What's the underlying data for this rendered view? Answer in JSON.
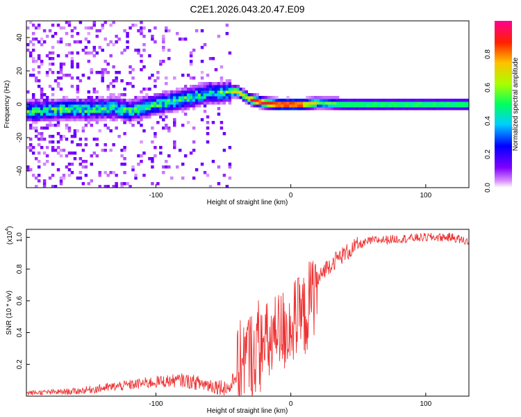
{
  "title": "C2E1.2026.043.20.47.E09",
  "chart_data": [
    {
      "type": "heatmap",
      "name": "spectrogram",
      "xlabel": "Height of straight line (km)",
      "ylabel": "Frequency (Hz)",
      "xlim": [
        -196,
        132
      ],
      "ylim": [
        -50,
        50
      ],
      "xticks": [
        -100,
        0,
        100
      ],
      "yticks": [
        -40,
        -20,
        0,
        20,
        40
      ],
      "colorbar": {
        "label": "Normalized spectral amplitude",
        "range": [
          0,
          1
        ],
        "ticks": [
          0.0,
          0.2,
          0.4,
          0.6,
          0.8
        ],
        "colors": [
          "#ffffff",
          "#a000ff",
          "#0000ff",
          "#00dfff",
          "#00ff40",
          "#c0ff00",
          "#ffa000",
          "#ff0000",
          "#ff00a0"
        ]
      },
      "ridge": {
        "x": [
          -190,
          -170,
          -150,
          -130,
          -120,
          -100,
          -80,
          -60,
          -50,
          -40,
          -30,
          -20,
          -10,
          0,
          10,
          20,
          40,
          60,
          80,
          100,
          132
        ],
        "freq": [
          -4,
          -3,
          -3,
          -2,
          -4,
          0,
          3,
          7,
          7,
          8,
          3,
          1,
          0,
          0,
          0,
          1,
          0,
          0,
          0,
          0,
          0
        ]
      }
    },
    {
      "type": "line",
      "name": "snr",
      "xlabel": "Height of straight line (km)",
      "ylabel": "SNR (10 * v/v)",
      "multiplier_label": "(x10",
      "multiplier_exp": "4",
      "xlim": [
        -196,
        132
      ],
      "ylim": [
        0,
        1.05
      ],
      "xticks": [
        -100,
        0,
        100
      ],
      "yticks": [
        0.2,
        0.4,
        0.6,
        0.8,
        1.0
      ],
      "color": "#ee3333",
      "trend": {
        "x": [
          -196,
          -160,
          -140,
          -120,
          -100,
          -80,
          -60,
          -45,
          -35,
          -20,
          -10,
          0,
          10,
          20,
          25,
          35,
          50,
          60,
          80,
          100,
          120,
          132
        ],
        "y": [
          0.02,
          0.03,
          0.05,
          0.07,
          0.09,
          0.1,
          0.07,
          0.05,
          0.25,
          0.3,
          0.38,
          0.45,
          0.5,
          0.72,
          0.8,
          0.87,
          0.95,
          0.98,
          0.99,
          1.0,
          1.0,
          0.97
        ]
      }
    }
  ]
}
